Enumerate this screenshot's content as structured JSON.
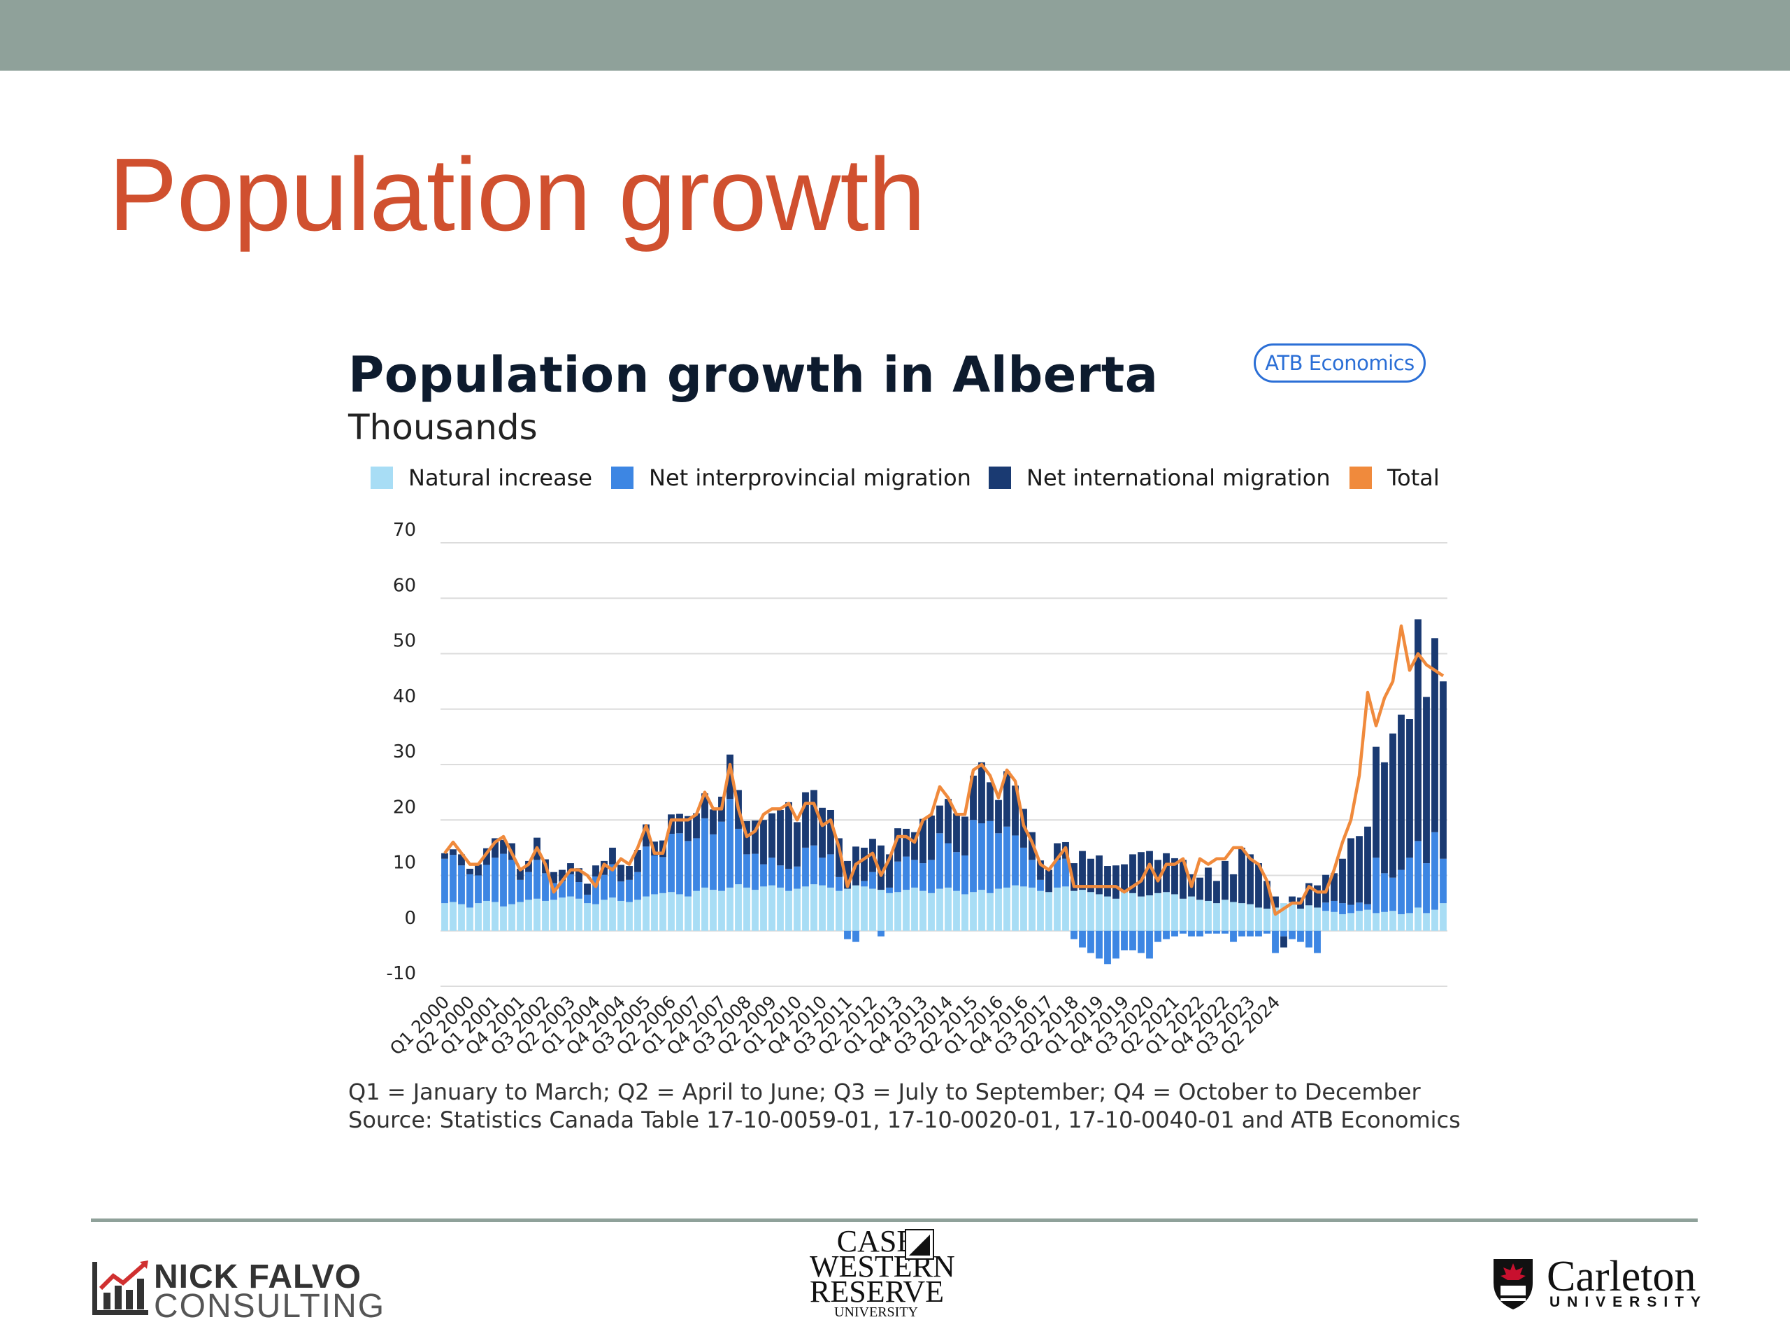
{
  "slide": {
    "title": "Population growth"
  },
  "badge": "ATB Economics",
  "footnotes": [
    "Q1 = January to March; Q2 = April to June; Q3 = July to September; Q4 = October to December",
    "Source: Statistics Canada Table 17-10-0059-01, 17-10-0020-01, 17-10-0040-01 and ATB Economics"
  ],
  "logos": {
    "nick_falvo": [
      "NICK FALVO",
      "CONSULTING"
    ],
    "case_western": [
      "CASE",
      "WESTERN",
      "RESERVE",
      "UNIVERSITY"
    ],
    "carleton": [
      "Carleton",
      "UNIVERSITY"
    ]
  },
  "chart_data": {
    "type": "bar",
    "stacked": true,
    "title": "Population growth in Alberta",
    "subtitle": "Thousands",
    "ylim": [
      -10,
      70
    ],
    "yticks": [
      70,
      60,
      50,
      40,
      30,
      20,
      10,
      0,
      -10
    ],
    "grid": true,
    "legend_position": "top",
    "colors": {
      "natural": "#a8ddf5",
      "interprovincial": "#3d86e3",
      "international": "#1a3a72",
      "total": "#f08a3c"
    },
    "tick_labels": [
      "Q1 2000",
      "Q2 2000",
      "Q1 2001",
      "Q4 2001",
      "Q3 2002",
      "Q2 2003",
      "Q1 2004",
      "Q4 2004",
      "Q3 2005",
      "Q2 2006",
      "Q1 2007",
      "Q4 2007",
      "Q3 2008",
      "Q2 2009",
      "Q1 2010",
      "Q4 2010",
      "Q3 2011",
      "Q2 2012",
      "Q1 2013",
      "Q4 2013",
      "Q3 2014",
      "Q2 2015",
      "Q1 2016",
      "Q4 2016",
      "Q3 2017",
      "Q2 2018",
      "Q1 2019",
      "Q4 2019",
      "Q3 2020",
      "Q2 2021",
      "Q1 2022",
      "Q4 2022",
      "Q3 2023",
      "Q2 2024"
    ],
    "series": [
      {
        "name": "Natural increase",
        "kind": "bar",
        "values": [
          5,
          5.2,
          4.8,
          4.2,
          5,
          5.4,
          5.2,
          4.4,
          4.8,
          5.2,
          5.6,
          5.8,
          5.4,
          5.6,
          6,
          6.2,
          5.8,
          5,
          4.8,
          5.6,
          6,
          5.4,
          5.2,
          5.6,
          6.2,
          6.6,
          6.8,
          7,
          6.6,
          6.2,
          7.2,
          7.8,
          7.4,
          7.2,
          7.8,
          8.4,
          7.8,
          7.4,
          8,
          8.2,
          7.8,
          7.2,
          7.6,
          8,
          8.4,
          8.2,
          7.8,
          7.2,
          7.6,
          8.2,
          8,
          7.6,
          7.4,
          6.8,
          7,
          7.4,
          7.8,
          7.2,
          6.8,
          7.6,
          7.8,
          7.2,
          6.6,
          7,
          7.4,
          6.8,
          7.6,
          7.8,
          8.2,
          8,
          7.8,
          7.2,
          7,
          7.8,
          8,
          7.2,
          7.4,
          7,
          6.6,
          6.2,
          5.8,
          7,
          6.8,
          6.2,
          6.4,
          6.8,
          7,
          6.6,
          5.8,
          6.2,
          5.6,
          5.4,
          5,
          5.6,
          5.2,
          5,
          4.8,
          4.2,
          4,
          4.2,
          5,
          5.2,
          4,
          4.6,
          4.2,
          3.6,
          3.4,
          3,
          3.2,
          3.6,
          3.8,
          3.2,
          3.4,
          3.6,
          3,
          3.2,
          4.2,
          3.2,
          3.8,
          5
        ]
      },
      {
        "name": "Net interprovincial migration",
        "kind": "bar",
        "values": [
          8,
          8.5,
          7,
          6,
          5,
          6.5,
          8,
          9.5,
          8,
          4,
          5,
          7,
          5,
          3,
          3,
          4,
          3,
          1.5,
          5,
          4.5,
          6,
          3.5,
          4,
          5,
          9,
          7,
          6.5,
          10.5,
          11,
          10,
          9.5,
          12.5,
          10,
          12.5,
          16,
          10,
          6,
          6.5,
          4,
          5,
          4,
          4,
          4,
          7,
          7,
          5,
          6,
          2.5,
          -1.5,
          -2,
          1,
          3,
          -1,
          1,
          5.5,
          6,
          5,
          5,
          6,
          10,
          8,
          7,
          7,
          13,
          12,
          13,
          10,
          11,
          9,
          7,
          5,
          2,
          0,
          5,
          5,
          -1.5,
          -3,
          -4,
          -5,
          -6,
          -5,
          -3.5,
          -3.5,
          -4,
          -5,
          -2,
          -1.5,
          -1,
          -0.5,
          -1,
          -1,
          -0.5,
          -0.5,
          -0.5,
          -2,
          -1,
          -1,
          -1,
          -0.5,
          -4,
          -1,
          -1.5,
          -2,
          -3,
          -4,
          1.5,
          2,
          2,
          1.5,
          1.5,
          1,
          10,
          7,
          6,
          8,
          10,
          12,
          9,
          14,
          8,
          9,
          10
        ]
      },
      {
        "name": "Net international migration",
        "kind": "bar",
        "values": [
          1,
          1,
          2,
          1,
          2,
          3,
          3.5,
          2.5,
          3,
          2,
          2,
          4,
          2.5,
          2,
          2,
          2,
          2.5,
          2,
          2,
          2.5,
          3,
          3,
          2.5,
          4,
          4,
          2.5,
          3,
          3.5,
          3.5,
          4.5,
          4.5,
          4.5,
          4.5,
          4.5,
          8,
          7,
          6,
          6,
          8,
          8,
          10,
          12,
          8,
          10,
          10,
          9,
          8,
          7,
          5,
          7,
          6,
          6,
          8,
          6,
          6,
          5,
          5,
          8,
          8,
          5,
          8,
          7,
          7,
          8,
          11,
          7,
          6,
          10,
          9,
          7,
          5,
          3.5,
          4,
          3,
          3,
          5,
          7,
          6,
          7,
          5.5,
          6,
          5,
          7,
          8,
          8,
          6,
          7,
          6.5,
          7,
          4,
          4,
          6,
          4,
          7,
          5,
          10,
          9,
          8,
          5,
          2,
          -2,
          1,
          2,
          4,
          4,
          5,
          5,
          8,
          12,
          12,
          14,
          20,
          20,
          26,
          28,
          25,
          40,
          30,
          35,
          32,
          36,
          32
        ]
      },
      {
        "name": "Total",
        "kind": "line",
        "values": [
          14,
          16,
          14,
          12,
          12,
          14,
          16,
          17,
          14,
          11,
          12,
          15,
          12,
          7,
          9,
          11,
          11,
          10,
          8,
          12,
          11,
          13,
          12,
          15,
          19,
          14,
          14,
          20,
          20,
          20,
          21,
          25,
          22,
          22,
          30,
          22,
          17,
          18,
          21,
          22,
          22,
          23,
          20,
          23,
          23,
          19,
          20,
          15,
          8,
          12,
          13,
          14,
          10,
          13,
          17,
          17,
          16,
          20,
          21,
          26,
          24,
          21,
          21,
          29,
          30,
          28,
          24,
          29,
          27,
          19,
          16,
          12,
          11,
          13,
          15,
          8,
          8,
          8,
          8,
          8,
          8,
          7,
          8,
          9,
          12,
          9,
          12,
          12,
          13,
          8,
          13,
          12,
          13,
          13,
          15,
          15,
          13,
          12,
          9,
          3,
          4,
          5,
          5,
          8,
          7,
          7,
          11,
          16,
          20,
          28,
          43,
          37,
          42,
          45,
          55,
          47,
          50,
          48,
          47,
          46
        ]
      }
    ]
  }
}
